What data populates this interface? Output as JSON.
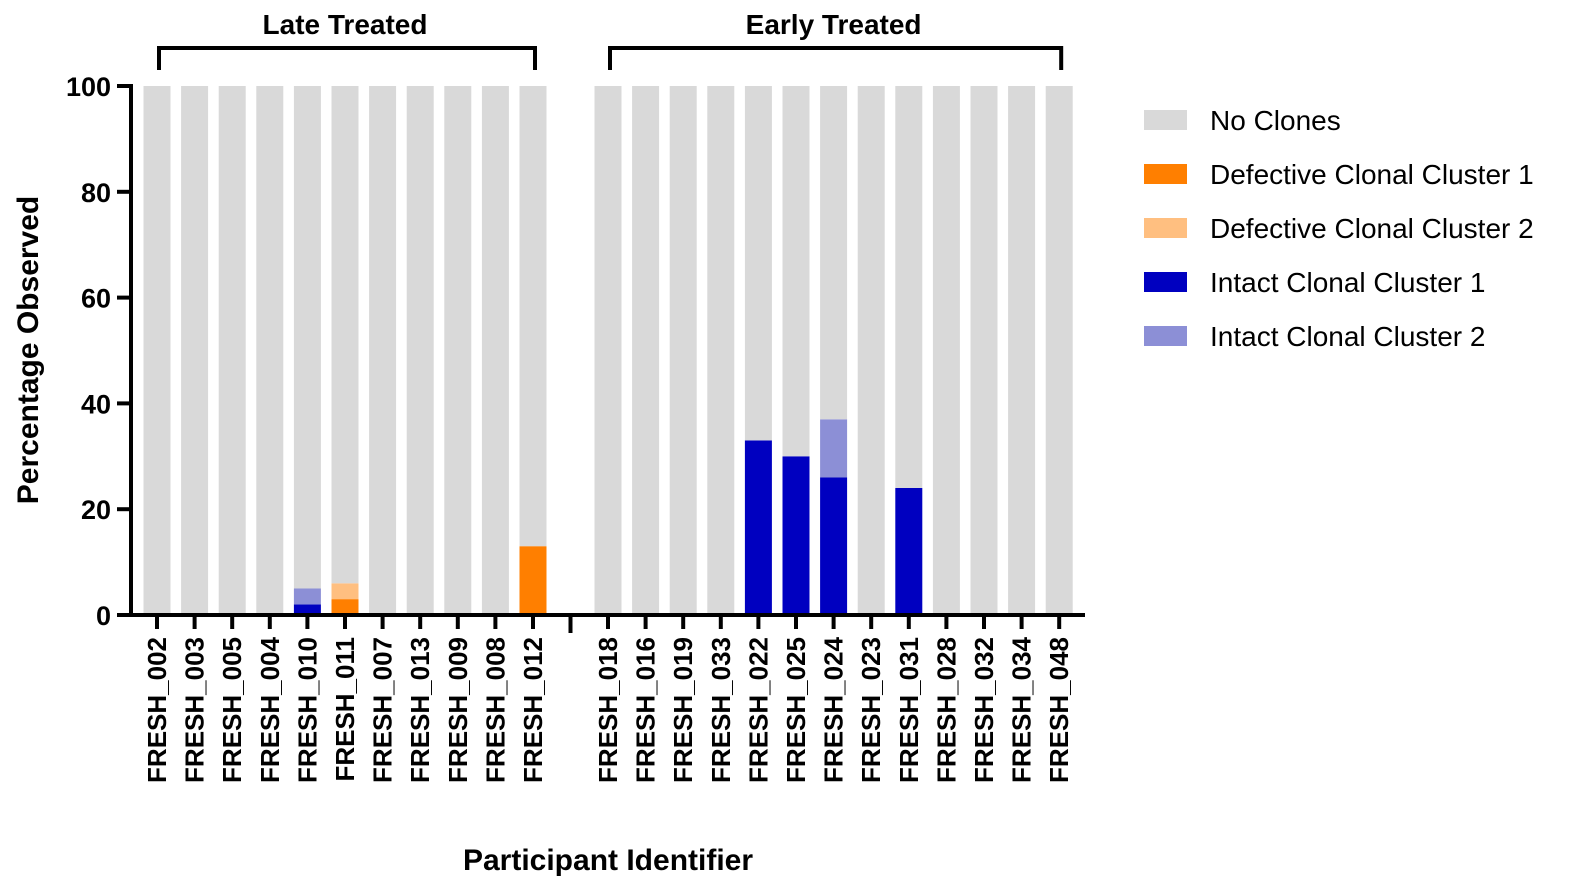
{
  "chart_data": {
    "type": "bar",
    "stacked": true,
    "ylabel": "Percentage Observed",
    "xlabel": "Participant Identifier",
    "ylim": [
      0,
      100
    ],
    "yticks": [
      0,
      20,
      40,
      60,
      80,
      100
    ],
    "legend_position": "right",
    "groups": [
      {
        "label": "Late Treated",
        "categories": [
          "FRESH_002",
          "FRESH_003",
          "FRESH_005",
          "FRESH_004",
          "FRESH_010",
          "FRESH_011",
          "FRESH_007",
          "FRESH_013",
          "FRESH_009",
          "FRESH_008",
          "FRESH_012"
        ]
      },
      {
        "label": "Early Treated",
        "categories": [
          "FRESH_018",
          "FRESH_016",
          "FRESH_019",
          "FRESH_033",
          "FRESH_022",
          "FRESH_025",
          "FRESH_024",
          "FRESH_023",
          "FRESH_031",
          "FRESH_028",
          "FRESH_032",
          "FRESH_034",
          "FRESH_048"
        ]
      }
    ],
    "categories": [
      "FRESH_002",
      "FRESH_003",
      "FRESH_005",
      "FRESH_004",
      "FRESH_010",
      "FRESH_011",
      "FRESH_007",
      "FRESH_013",
      "FRESH_009",
      "FRESH_008",
      "FRESH_012",
      "FRESH_018",
      "FRESH_016",
      "FRESH_019",
      "FRESH_033",
      "FRESH_022",
      "FRESH_025",
      "FRESH_024",
      "FRESH_023",
      "FRESH_031",
      "FRESH_028",
      "FRESH_032",
      "FRESH_034",
      "FRESH_048"
    ],
    "series": [
      {
        "name": "Defective Clonal Cluster 1",
        "color": "#ff7f00",
        "values": [
          0,
          0,
          0,
          0,
          0,
          3,
          0,
          0,
          0,
          0,
          13,
          0,
          0,
          0,
          0,
          0,
          0,
          0,
          0,
          0,
          0,
          0,
          0,
          0
        ]
      },
      {
        "name": "Defective Clonal Cluster 2",
        "color": "#ffbf80",
        "values": [
          0,
          0,
          0,
          0,
          0,
          3,
          0,
          0,
          0,
          0,
          0,
          0,
          0,
          0,
          0,
          0,
          0,
          0,
          0,
          0,
          0,
          0,
          0,
          0
        ]
      },
      {
        "name": "Intact Clonal Cluster 1",
        "color": "#0000c0",
        "values": [
          0,
          0,
          0,
          0,
          2,
          0,
          0,
          0,
          0,
          0,
          0,
          0,
          0,
          0,
          0,
          33,
          30,
          26,
          0,
          24,
          0,
          0,
          0,
          0
        ]
      },
      {
        "name": "Intact Clonal Cluster 2",
        "color": "#8c8fd6",
        "values": [
          0,
          0,
          0,
          0,
          3,
          0,
          0,
          0,
          0,
          0,
          0,
          0,
          0,
          0,
          0,
          0,
          0,
          11,
          0,
          0,
          0,
          0,
          0,
          0
        ]
      },
      {
        "name": "No Clones",
        "color": "#d9d9d9",
        "values": [
          100,
          100,
          100,
          100,
          95,
          94,
          100,
          100,
          100,
          100,
          87,
          100,
          100,
          100,
          100,
          67,
          70,
          63,
          100,
          76,
          100,
          100,
          100,
          100
        ]
      }
    ],
    "legend": [
      {
        "name": "No Clones",
        "color": "#d9d9d9"
      },
      {
        "name": "Defective Clonal Cluster 1",
        "color": "#ff7f00"
      },
      {
        "name": "Defective Clonal Cluster 2",
        "color": "#ffbf80"
      },
      {
        "name": "Intact Clonal Cluster 1",
        "color": "#0000c0"
      },
      {
        "name": "Intact Clonal Cluster 2",
        "color": "#8c8fd6"
      }
    ]
  }
}
